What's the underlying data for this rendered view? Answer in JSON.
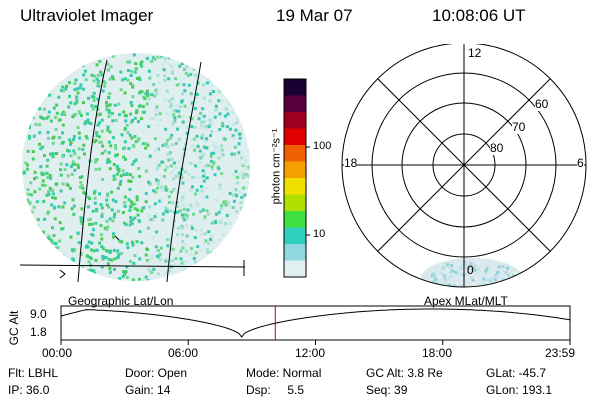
{
  "header": {
    "instrument": "Ultraviolet Imager",
    "date": "19 Mar 07",
    "time": "10:08:06 UT"
  },
  "colorbar": {
    "unit_label": "photon cm⁻²s⁻¹",
    "ticks": [
      "100",
      "10"
    ],
    "colors": [
      "#1a0030",
      "#5a0040",
      "#a00020",
      "#e00000",
      "#f06000",
      "#f5a000",
      "#f0e000",
      "#b0e000",
      "#40e040",
      "#30d0c0",
      "#90d8e0",
      "#e0f0f0"
    ]
  },
  "polar": {
    "mlt_labels": {
      "top": "12",
      "left": "18",
      "right": "6",
      "bottom": "0"
    },
    "lat_labels": [
      "60",
      "70",
      "80"
    ]
  },
  "timeline": {
    "left_label": "Geographic Lat/Lon",
    "right_label": "Apex MLat/MLT",
    "y_axis_title": "GC Alt",
    "y_ticks": [
      "9.0",
      "1.8"
    ],
    "x_ticks": [
      "00:00",
      "06:00",
      "12:00",
      "18:00",
      "23:59"
    ],
    "current_time_fraction": 0.421,
    "marker_color": "#c00000"
  },
  "status": {
    "flt": "Flt: LBHL",
    "ip": "IP: 36.0",
    "door": "Door: Open",
    "gain": "Gain: 14",
    "mode": "Mode: Normal",
    "dsp": "Dsp:     5.5",
    "gc_alt": "GC Alt: 3.8 Re",
    "seq": "Seq: 39",
    "glat": "GLat: -45.7",
    "glon": "GLon: 193.1"
  }
}
